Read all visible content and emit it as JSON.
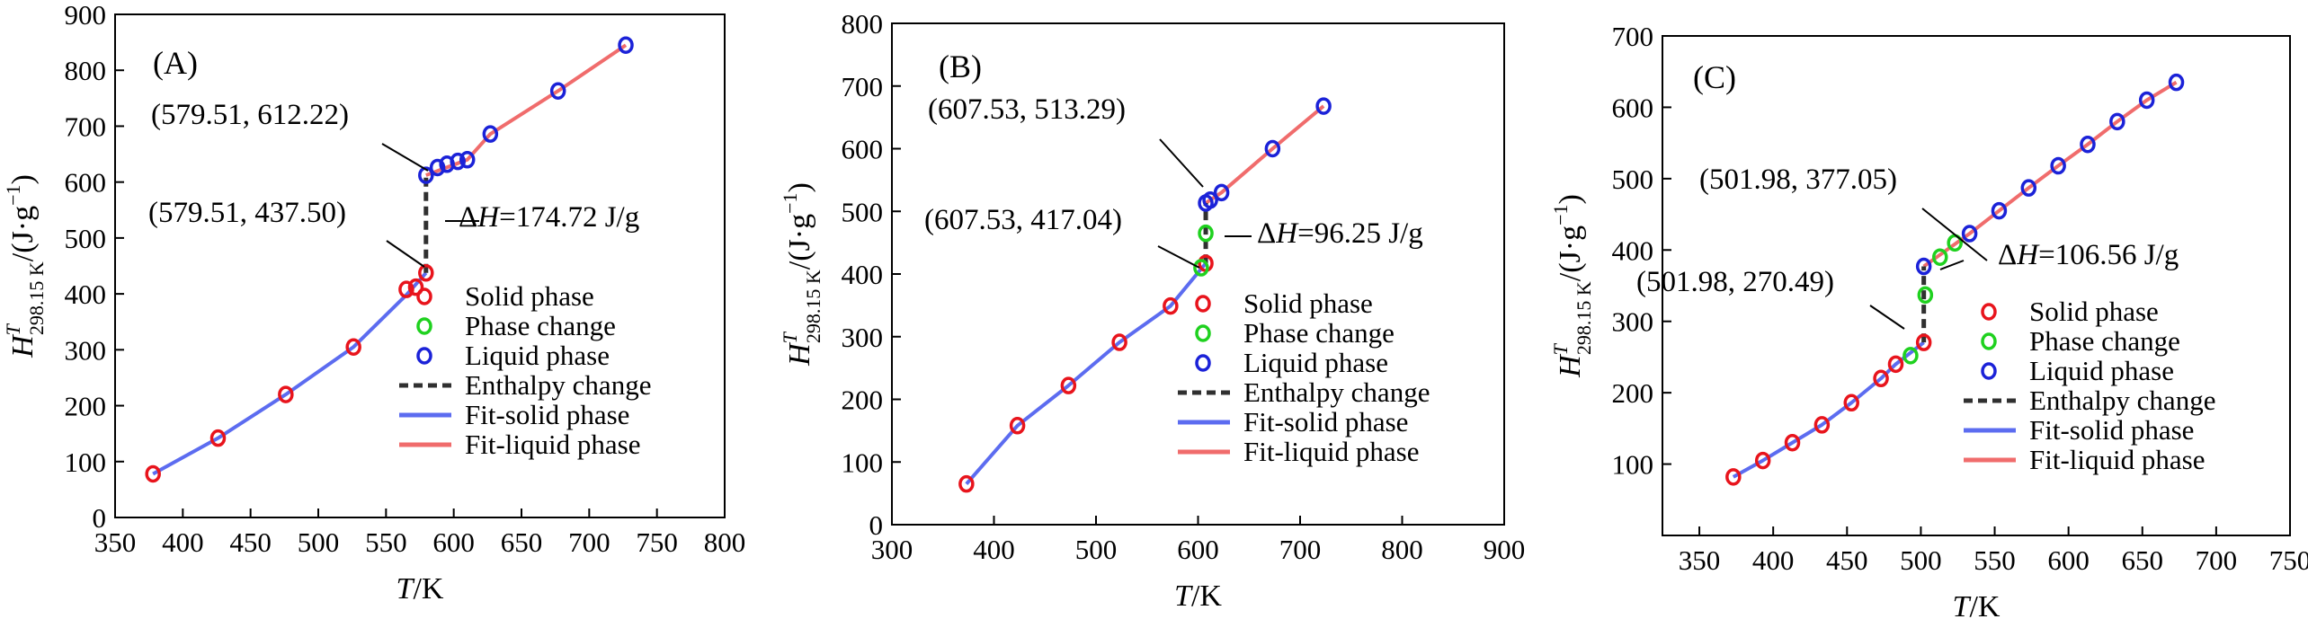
{
  "figure": {
    "colors": {
      "solid": "#e8141c",
      "phase": "#1fd11f",
      "liquid": "#1b22d8",
      "fit_solid": "#5c6cf0",
      "fit_liquid": "#f06c6c",
      "enthalpy": "#303030"
    },
    "legend_labels": {
      "solid": "Solid phase",
      "phase": "Phase change",
      "liquid": "Liquid phase",
      "enthalpy": "Enthalpy change",
      "fit_solid": "Fit-solid phase",
      "fit_liquid": "Fit-liquid phase"
    }
  },
  "chart_data": [
    {
      "type": "scatter",
      "panel_label": "(A)",
      "xlabel": {
        "var": "T",
        "unit": "/K"
      },
      "ylabel": {
        "var": "H",
        "sup": "T",
        "sub": "298.15 K",
        "unit": "/(J·g",
        "exp": "−1",
        "close": ")"
      },
      "xlim": [
        350,
        800
      ],
      "ylim": [
        0,
        900
      ],
      "xticks": [
        350,
        400,
        450,
        500,
        550,
        600,
        650,
        700,
        750,
        800
      ],
      "yticks": [
        0,
        100,
        200,
        300,
        400,
        500,
        600,
        700,
        800,
        900
      ],
      "grid": false,
      "legend_position": "lower-right",
      "series": [
        {
          "name": "Solid phase",
          "role": "solid",
          "x": [
            378,
            426,
            476,
            526,
            565,
            572,
            579.51
          ],
          "y": [
            78,
            142,
            220,
            305,
            408,
            412,
            437.5
          ]
        },
        {
          "name": "Phase change",
          "role": "phase",
          "x": [],
          "y": []
        },
        {
          "name": "Liquid phase",
          "role": "liquid",
          "x": [
            579.51,
            588,
            595,
            603,
            610,
            627,
            677,
            727
          ],
          "y": [
            612.22,
            626,
            632,
            637,
            640,
            686,
            763,
            845
          ]
        },
        {
          "name": "Enthalpy change",
          "role": "enthalpy",
          "x": [
            579.51,
            579.51
          ],
          "y": [
            437.5,
            612.22
          ]
        },
        {
          "name": "Fit-solid phase",
          "role": "fit_solid",
          "x": [
            378,
            426,
            476,
            526,
            565,
            579.51
          ],
          "y": [
            78,
            142,
            220,
            305,
            398,
            437.5
          ]
        },
        {
          "name": "Fit-liquid phase",
          "role": "fit_liquid",
          "x": [
            579.51,
            610,
            627,
            677,
            727
          ],
          "y": [
            612.22,
            640,
            686,
            763,
            845
          ]
        }
      ],
      "annotations": [
        {
          "text": "(579.51, 612.22)",
          "x": 579.51,
          "y": 612.22
        },
        {
          "text": "(579.51, 437.50)",
          "x": 579.51,
          "y": 437.5
        },
        {
          "text": "=174.72 J/g",
          "prefix": "ΔH",
          "x": 579.51,
          "y": 525
        }
      ]
    },
    {
      "type": "scatter",
      "panel_label": "(B)",
      "xlabel": {
        "var": "T",
        "unit": "/K"
      },
      "ylabel": {
        "var": "H",
        "sup": "T",
        "sub": "298.15 K",
        "unit": "/(J·g",
        "exp": "−1",
        "close": ")"
      },
      "xlim": [
        300,
        900
      ],
      "ylim": [
        0,
        800
      ],
      "xticks": [
        300,
        400,
        500,
        600,
        700,
        800,
        900
      ],
      "yticks": [
        0,
        100,
        200,
        300,
        400,
        500,
        600,
        700,
        800
      ],
      "grid": false,
      "legend_position": "lower-right",
      "series": [
        {
          "name": "Solid phase",
          "role": "solid",
          "x": [
            373,
            423,
            473,
            523,
            573,
            607.53
          ],
          "y": [
            65,
            158,
            222,
            291,
            349,
            417.04
          ]
        },
        {
          "name": "Phase change",
          "role": "phase",
          "x": [
            603,
            607.53
          ],
          "y": [
            410,
            465
          ]
        },
        {
          "name": "Liquid phase",
          "role": "liquid",
          "x": [
            607.53,
            612,
            623,
            673,
            723
          ],
          "y": [
            513.29,
            518,
            530,
            600,
            668
          ]
        },
        {
          "name": "Enthalpy change",
          "role": "enthalpy",
          "x": [
            607.53,
            607.53
          ],
          "y": [
            417.04,
            513.29
          ]
        },
        {
          "name": "Fit-solid phase",
          "role": "fit_solid",
          "x": [
            373,
            423,
            473,
            523,
            573,
            607.53
          ],
          "y": [
            65,
            158,
            222,
            291,
            349,
            417.04
          ]
        },
        {
          "name": "Fit-liquid phase",
          "role": "fit_liquid",
          "x": [
            607.53,
            623,
            673,
            723
          ],
          "y": [
            513.29,
            530,
            600,
            668
          ]
        }
      ],
      "annotations": [
        {
          "text": "(607.53, 513.29)",
          "x": 607.53,
          "y": 513.29
        },
        {
          "text": "(607.53, 417.04)",
          "x": 607.53,
          "y": 417.04
        },
        {
          "text": "=96.25 J/g",
          "prefix": "ΔH",
          "x": 607.53,
          "y": 465
        }
      ]
    },
    {
      "type": "scatter",
      "panel_label": "(C)",
      "xlabel": {
        "var": "T",
        "unit": "/K"
      },
      "ylabel": {
        "var": "H",
        "sup": "T",
        "sub": "298.15 K",
        "unit": "/(J·g",
        "exp": "−1",
        "close": ")"
      },
      "xlim": [
        325,
        750
      ],
      "ylim": [
        0,
        700
      ],
      "xticks": [
        350,
        400,
        450,
        500,
        550,
        600,
        650,
        700,
        750
      ],
      "yticks": [
        100,
        200,
        300,
        400,
        500,
        600,
        700
      ],
      "grid": false,
      "legend_position": "lower-right",
      "series": [
        {
          "name": "Solid phase",
          "role": "solid",
          "x": [
            373,
            393,
            413,
            433,
            453,
            473,
            483,
            501.98
          ],
          "y": [
            82,
            105,
            130,
            155,
            186,
            220,
            240,
            270.49
          ]
        },
        {
          "name": "Phase change",
          "role": "phase",
          "x": [
            493,
            503,
            513,
            523
          ],
          "y": [
            252,
            337,
            390,
            410
          ]
        },
        {
          "name": "Liquid phase",
          "role": "liquid",
          "x": [
            501.98,
            533,
            553,
            573,
            593,
            613,
            633,
            653,
            673
          ],
          "y": [
            377.05,
            423,
            455,
            487,
            518,
            548,
            580,
            610,
            635
          ]
        },
        {
          "name": "Enthalpy change",
          "role": "enthalpy",
          "x": [
            501.98,
            501.98
          ],
          "y": [
            270.49,
            377.05
          ]
        },
        {
          "name": "Fit-solid phase",
          "role": "fit_solid",
          "x": [
            373,
            393,
            413,
            433,
            453,
            473,
            483,
            501.98
          ],
          "y": [
            82,
            105,
            130,
            155,
            186,
            220,
            240,
            270.49
          ]
        },
        {
          "name": "Fit-liquid phase",
          "role": "fit_liquid",
          "x": [
            501.98,
            533,
            553,
            573,
            593,
            613,
            633,
            653,
            673
          ],
          "y": [
            377.05,
            423,
            455,
            487,
            518,
            548,
            580,
            610,
            635
          ]
        }
      ],
      "annotations": [
        {
          "text": "(501.98, 377.05)",
          "x": 501.98,
          "y": 377.05
        },
        {
          "text": "(501.98, 270.49)",
          "x": 501.98,
          "y": 270.49
        },
        {
          "text": "=106.56 J/g",
          "prefix": "ΔH",
          "x": 501.98,
          "y": 337
        }
      ]
    }
  ]
}
